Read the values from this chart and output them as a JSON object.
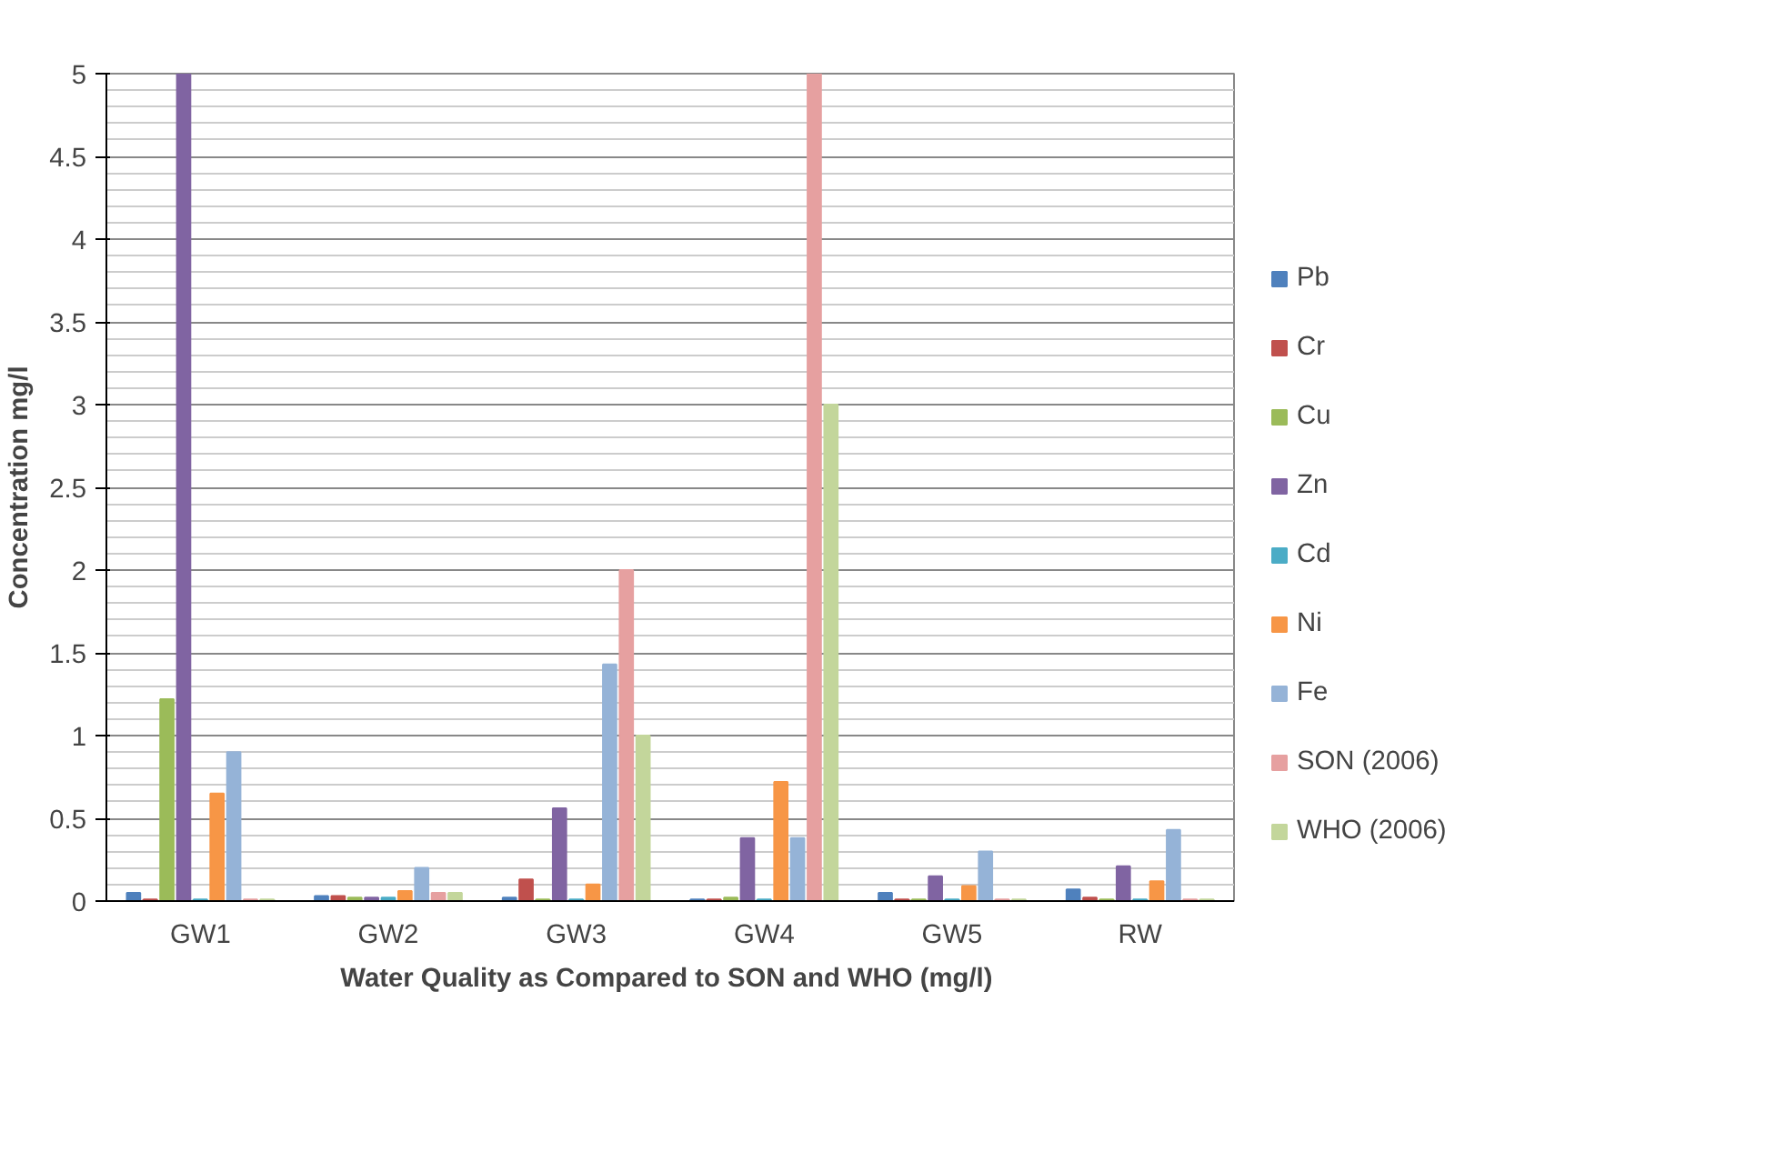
{
  "chart_data": {
    "type": "bar",
    "xlabel": "Water  Quality as Compared to SON and WHO (mg/l)",
    "ylabel": "Concentration mg/l",
    "categories": [
      "GW1",
      "GW2",
      "GW3",
      "GW4",
      "GW5",
      "RW"
    ],
    "ylim": [
      0,
      5
    ],
    "yticks": [
      0,
      0.5,
      1,
      1.5,
      2,
      2.5,
      3,
      3.5,
      4,
      4.5,
      5
    ],
    "grid": "y",
    "legend": "right",
    "series": [
      {
        "name": "Pb",
        "color": "#4f81bd",
        "values": [
          0.05,
          0.03,
          0.02,
          0.01,
          0.05,
          0.07
        ]
      },
      {
        "name": "Cr",
        "color": "#c0504d",
        "values": [
          0.01,
          0.03,
          0.13,
          0.01,
          0.01,
          0.02
        ]
      },
      {
        "name": "Cu",
        "color": "#9bbb59",
        "values": [
          1.22,
          0.02,
          0.01,
          0.02,
          0.01,
          0.01
        ]
      },
      {
        "name": "Zn",
        "color": "#8064a2",
        "values": [
          5.0,
          0.02,
          0.56,
          0.38,
          0.15,
          0.21
        ]
      },
      {
        "name": "Cd",
        "color": "#4bacc6",
        "values": [
          0.01,
          0.02,
          0.01,
          0.01,
          0.01,
          0.01
        ]
      },
      {
        "name": "Ni",
        "color": "#f79646",
        "values": [
          0.65,
          0.06,
          0.1,
          0.72,
          0.09,
          0.12
        ]
      },
      {
        "name": "Fe",
        "color": "#95b3d7",
        "values": [
          0.9,
          0.2,
          1.43,
          0.38,
          0.3,
          0.43
        ]
      },
      {
        "name": "SON (2006)",
        "color": "#e6a0a0",
        "values": [
          0.01,
          0.05,
          2.0,
          5.0,
          0.01,
          0.01
        ]
      },
      {
        "name": "WHO (2006)",
        "color": "#c3d69b",
        "values": [
          0.01,
          0.05,
          1.0,
          3.0,
          0.01,
          0.01
        ]
      }
    ]
  }
}
